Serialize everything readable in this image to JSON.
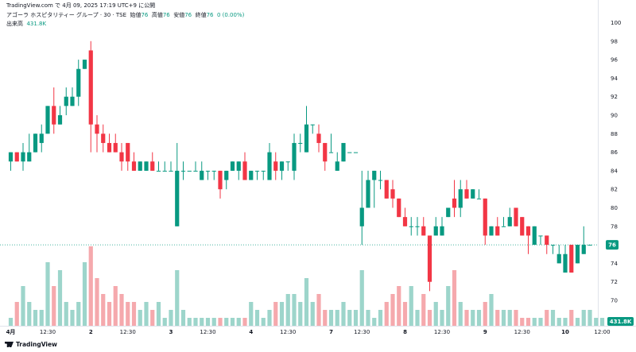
{
  "header": {
    "published": "TradingView.com で 4月 09, 2025 17:19 UTC+9 に公開",
    "symbol": "アゴーラ ホスピタリティー グループ · 30 · TSE",
    "ohlc_labels": [
      "始値",
      "高値",
      "安値",
      "終値"
    ],
    "ohlc_values": [
      "76",
      "76",
      "76",
      "76"
    ],
    "change": "0 (0.00%)",
    "volume_label": "出来高",
    "volume_value": "431.8K"
  },
  "price_label": "76",
  "volume_label_right": "431.8K",
  "logo_text": "TradingView",
  "colors": {
    "up": "#089981",
    "down": "#f23645",
    "vol_up": "#9dd5cb",
    "vol_down": "#f5a9ad",
    "axis_text": "#131722"
  },
  "chart_data": {
    "type": "candlestick",
    "y_ticks": [
      70,
      72,
      74,
      76,
      78,
      80,
      82,
      84,
      86,
      88,
      90,
      92,
      94,
      96,
      98,
      100
    ],
    "y_tick_labels": [
      "70",
      "72",
      "74",
      "76",
      "78",
      "80",
      "82",
      "84",
      "86",
      "88",
      "90",
      "92",
      "94",
      "96",
      "98",
      "100"
    ],
    "x_tick_labels": [
      {
        "i": 0,
        "label": "4月"
      },
      {
        "i": 6,
        "label": "12:30"
      },
      {
        "i": 13,
        "label": "2"
      },
      {
        "i": 19,
        "label": "12:30"
      },
      {
        "i": 26,
        "label": "3"
      },
      {
        "i": 32,
        "label": "12:30"
      },
      {
        "i": 39,
        "label": "4"
      },
      {
        "i": 45,
        "label": "12:30"
      },
      {
        "i": 52,
        "label": "7"
      },
      {
        "i": 57,
        "label": "12:30"
      },
      {
        "i": 64,
        "label": "8"
      },
      {
        "i": 70,
        "label": "12:30"
      },
      {
        "i": 77,
        "label": "9"
      },
      {
        "i": 83,
        "label": "12:30"
      },
      {
        "i": 90,
        "label": "10"
      },
      {
        "i": 96,
        "label": "12:00"
      }
    ],
    "last_price": 76,
    "candles": [
      {
        "o": 85,
        "h": 86,
        "l": 84,
        "c": 86
      },
      {
        "o": 86,
        "h": 86,
        "l": 85,
        "c": 85
      },
      {
        "o": 85,
        "h": 87,
        "l": 84,
        "c": 86
      },
      {
        "o": 85,
        "h": 88,
        "l": 85,
        "c": 86
      },
      {
        "o": 86,
        "h": 88,
        "l": 86,
        "c": 88
      },
      {
        "o": 87,
        "h": 89,
        "l": 86,
        "c": 88
      },
      {
        "o": 88,
        "h": 91,
        "l": 88,
        "c": 91
      },
      {
        "o": 91,
        "h": 93,
        "l": 88,
        "c": 89
      },
      {
        "o": 89,
        "h": 91,
        "l": 89,
        "c": 90
      },
      {
        "o": 91,
        "h": 93,
        "l": 90,
        "c": 92
      },
      {
        "o": 91,
        "h": 93,
        "l": 91,
        "c": 92
      },
      {
        "o": 92,
        "h": 96,
        "l": 91,
        "c": 95
      },
      {
        "o": 95,
        "h": 96,
        "l": 95,
        "c": 96
      },
      {
        "o": 97,
        "h": 98,
        "l": 86,
        "c": 89
      },
      {
        "o": 89,
        "h": 90,
        "l": 86,
        "c": 88
      },
      {
        "o": 88,
        "h": 89,
        "l": 86,
        "c": 87
      },
      {
        "o": 87,
        "h": 88,
        "l": 86,
        "c": 86
      },
      {
        "o": 87,
        "h": 88,
        "l": 86,
        "c": 86
      },
      {
        "o": 86,
        "h": 87,
        "l": 84,
        "c": 85
      },
      {
        "o": 87,
        "h": 87,
        "l": 84,
        "c": 85
      },
      {
        "o": 85,
        "h": 86,
        "l": 84,
        "c": 84
      },
      {
        "o": 84,
        "h": 85,
        "l": 84,
        "c": 85
      },
      {
        "o": 84,
        "h": 85,
        "l": 84,
        "c": 85
      },
      {
        "o": 85,
        "h": 86,
        "l": 84,
        "c": 84
      },
      {
        "o": 84,
        "h": 85,
        "l": 84,
        "c": 84
      },
      {
        "o": 84,
        "h": 85,
        "l": 84,
        "c": 84
      },
      {
        "o": 84,
        "h": 85,
        "l": 84,
        "c": 84
      },
      {
        "o": 78,
        "h": 87,
        "l": 78,
        "c": 84
      },
      {
        "o": 84,
        "h": 85,
        "l": 83,
        "c": 84
      },
      {
        "o": 84,
        "h": 84,
        "l": 84,
        "c": 84
      },
      {
        "o": 84,
        "h": 85,
        "l": 84,
        "c": 84
      },
      {
        "o": 83,
        "h": 85,
        "l": 83,
        "c": 84
      },
      {
        "o": 84,
        "h": 84,
        "l": 83,
        "c": 84
      },
      {
        "o": 84,
        "h": 84,
        "l": 83,
        "c": 84
      },
      {
        "o": 84,
        "h": 84,
        "l": 81,
        "c": 82
      },
      {
        "o": 83,
        "h": 84,
        "l": 82,
        "c": 84
      },
      {
        "o": 84,
        "h": 85,
        "l": 84,
        "c": 85
      },
      {
        "o": 84,
        "h": 85,
        "l": 83,
        "c": 85
      },
      {
        "o": 85,
        "h": 86,
        "l": 83,
        "c": 83
      },
      {
        "o": 83,
        "h": 84,
        "l": 83,
        "c": 84
      },
      {
        "o": 84,
        "h": 84,
        "l": 83,
        "c": 84
      },
      {
        "o": 84,
        "h": 84,
        "l": 83,
        "c": 84
      },
      {
        "o": 83,
        "h": 87,
        "l": 83,
        "c": 86
      },
      {
        "o": 85,
        "h": 86,
        "l": 83,
        "c": 84
      },
      {
        "o": 84,
        "h": 85,
        "l": 83,
        "c": 85
      },
      {
        "o": 85,
        "h": 85,
        "l": 84,
        "c": 85
      },
      {
        "o": 84,
        "h": 88,
        "l": 83,
        "c": 87
      },
      {
        "o": 87,
        "h": 88,
        "l": 86,
        "c": 87
      },
      {
        "o": 86,
        "h": 91,
        "l": 86,
        "c": 89
      },
      {
        "o": 89,
        "h": 89,
        "l": 88,
        "c": 89
      },
      {
        "o": 88,
        "h": 89,
        "l": 86,
        "c": 87
      },
      {
        "o": 87,
        "h": 87,
        "l": 84,
        "c": 85
      },
      {
        "o": 86,
        "h": 88,
        "l": 86,
        "c": 86
      },
      {
        "o": 84,
        "h": 86,
        "l": 84,
        "c": 85
      },
      {
        "o": 85,
        "h": 87,
        "l": 85,
        "c": 87
      },
      {
        "o": 86,
        "h": 86,
        "l": 86,
        "c": 86
      },
      {
        "o": 86,
        "h": 86,
        "l": 86,
        "c": 86
      },
      {
        "o": 78,
        "h": 84,
        "l": 76,
        "c": 80
      },
      {
        "o": 80,
        "h": 84,
        "l": 80,
        "c": 83
      },
      {
        "o": 83,
        "h": 84,
        "l": 80,
        "c": 84
      },
      {
        "o": 83,
        "h": 84,
        "l": 82,
        "c": 83
      },
      {
        "o": 83,
        "h": 83,
        "l": 81,
        "c": 81
      },
      {
        "o": 82,
        "h": 83,
        "l": 80,
        "c": 81
      },
      {
        "o": 81,
        "h": 81,
        "l": 79,
        "c": 79
      },
      {
        "o": 79,
        "h": 80,
        "l": 78,
        "c": 78
      },
      {
        "o": 78,
        "h": 79,
        "l": 77,
        "c": 78
      },
      {
        "o": 78,
        "h": 79,
        "l": 77,
        "c": 78
      },
      {
        "o": 78,
        "h": 79,
        "l": 77,
        "c": 77
      },
      {
        "o": 77,
        "h": 77,
        "l": 71,
        "c": 72
      },
      {
        "o": 77,
        "h": 79,
        "l": 77,
        "c": 78
      },
      {
        "o": 77,
        "h": 79,
        "l": 77,
        "c": 78
      },
      {
        "o": 79,
        "h": 80,
        "l": 79,
        "c": 80
      },
      {
        "o": 81,
        "h": 83,
        "l": 79,
        "c": 80
      },
      {
        "o": 80,
        "h": 83,
        "l": 79,
        "c": 82
      },
      {
        "o": 82,
        "h": 83,
        "l": 81,
        "c": 81
      },
      {
        "o": 81,
        "h": 82,
        "l": 81,
        "c": 82
      },
      {
        "o": 81,
        "h": 82,
        "l": 81,
        "c": 81
      },
      {
        "o": 81,
        "h": 81,
        "l": 76,
        "c": 77
      },
      {
        "o": 77,
        "h": 78,
        "l": 77,
        "c": 78
      },
      {
        "o": 78,
        "h": 79,
        "l": 77,
        "c": 77
      },
      {
        "o": 78,
        "h": 79,
        "l": 78,
        "c": 78
      },
      {
        "o": 78,
        "h": 80,
        "l": 78,
        "c": 79
      },
      {
        "o": 80,
        "h": 80,
        "l": 78,
        "c": 78
      },
      {
        "o": 79,
        "h": 79,
        "l": 77,
        "c": 77
      },
      {
        "o": 78,
        "h": 78,
        "l": 75,
        "c": 77
      },
      {
        "o": 76,
        "h": 78,
        "l": 76,
        "c": 78
      },
      {
        "o": 77,
        "h": 77,
        "l": 76,
        "c": 77
      },
      {
        "o": 77,
        "h": 77,
        "l": 75,
        "c": 76
      },
      {
        "o": 76,
        "h": 76,
        "l": 75,
        "c": 76
      },
      {
        "o": 74,
        "h": 76,
        "l": 74,
        "c": 75
      },
      {
        "o": 73,
        "h": 76,
        "l": 73,
        "c": 75
      },
      {
        "o": 76,
        "h": 76,
        "l": 73,
        "c": 73
      },
      {
        "o": 74,
        "h": 76,
        "l": 74,
        "c": 76
      },
      {
        "o": 75,
        "h": 78,
        "l": 75,
        "c": 76
      },
      {
        "o": 76,
        "h": 76,
        "l": 76,
        "c": 76
      }
    ],
    "volumes": [
      0.1,
      0.3,
      0.5,
      0.3,
      0.2,
      0.2,
      0.8,
      0.5,
      0.7,
      0.3,
      0.2,
      0.3,
      0.8,
      1.0,
      0.6,
      0.4,
      0.3,
      0.5,
      0.4,
      0.3,
      0.3,
      0.2,
      0.3,
      0.2,
      0.3,
      0.1,
      0.2,
      0.7,
      0.2,
      0.1,
      0.1,
      0.1,
      0.1,
      0.1,
      0.1,
      0.1,
      0.1,
      0.1,
      0.1,
      0.3,
      0.2,
      0.1,
      0.2,
      0.3,
      0.3,
      0.4,
      0.4,
      0.3,
      0.6,
      0.3,
      0.4,
      0.2,
      0.2,
      0.2,
      0.3,
      0.2,
      0.2,
      0.7,
      0.2,
      0.1,
      0.2,
      0.3,
      0.4,
      0.5,
      0.3,
      0.5,
      0.2,
      0.4,
      0.2,
      0.3,
      0.2,
      0.5,
      0.7,
      0.3,
      0.2,
      0.2,
      0.2,
      0.3,
      0.4,
      0.2,
      0.2,
      0.2,
      0.2,
      0.1,
      0.1,
      0.1,
      0.1,
      0.2,
      0.2,
      0.1,
      0.1,
      0.2,
      0.1,
      0.2,
      0.2,
      0.1,
      0.1
    ]
  }
}
